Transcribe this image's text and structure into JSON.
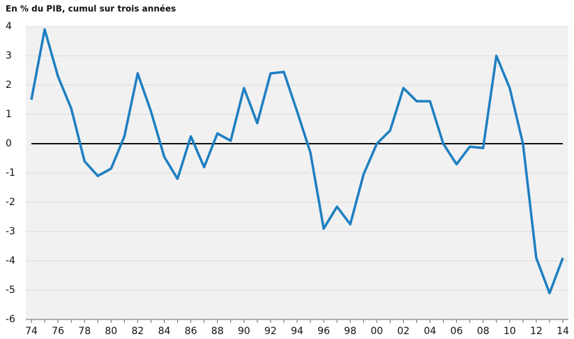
{
  "chart_data": {
    "type": "line",
    "title": "En % du PIB, cumul sur trois années",
    "categories": [
      "74",
      null,
      "76",
      null,
      "78",
      null,
      "80",
      null,
      "82",
      null,
      "84",
      null,
      "86",
      null,
      "88",
      null,
      "90",
      null,
      "92",
      null,
      "94",
      null,
      "96",
      null,
      "98",
      null,
      "00",
      null,
      "02",
      null,
      "04",
      null,
      "06",
      null,
      "08",
      null,
      "10",
      null,
      "12",
      null,
      "14"
    ],
    "series": [
      {
        "color": "#1f7fc1",
        "values": [
          1.5,
          3.9,
          2.3,
          1.2,
          -0.6,
          -1.1,
          -0.85,
          0.25,
          2.4,
          1.1,
          -0.45,
          -1.2,
          0.25,
          -0.8,
          0.35,
          0.1,
          1.9,
          0.7,
          2.4,
          2.45,
          1.1,
          -0.3,
          -2.9,
          -2.15,
          -2.75,
          -1.05,
          0.0,
          0.45,
          1.9,
          1.45,
          1.45,
          0.0,
          -0.7,
          -0.1,
          -0.15,
          3.0,
          1.9,
          0.0,
          -3.9,
          -5.1,
          -3.9
        ]
      }
    ],
    "ylim": [
      -6,
      4
    ],
    "yticks": [
      -6,
      -5,
      -4,
      -3,
      -2,
      -1,
      0,
      1,
      2,
      3,
      4
    ],
    "grid": true
  }
}
